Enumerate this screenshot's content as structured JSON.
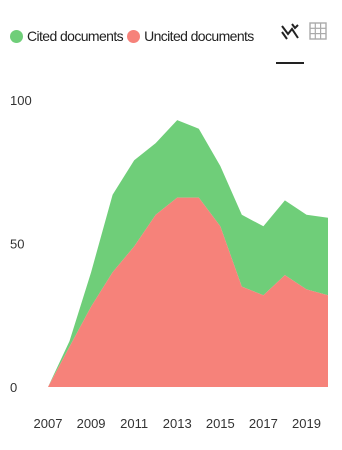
{
  "legend": {
    "items": [
      {
        "label": "Cited documents",
        "color": "#6fce79"
      },
      {
        "label": "Uncited documents",
        "color": "#f6827a"
      }
    ]
  },
  "toolbar": {
    "buttons": [
      {
        "icon": "area-chart-icon",
        "active": true
      },
      {
        "icon": "table-grid-icon",
        "active": false
      }
    ]
  },
  "chart_data": {
    "type": "area",
    "stacked": true,
    "x": [
      2007,
      2008,
      2009,
      2010,
      2011,
      2012,
      2013,
      2014,
      2015,
      2016,
      2017,
      2018,
      2019,
      2020
    ],
    "series": [
      {
        "name": "Uncited documents",
        "color": "#f6827a",
        "values": [
          0,
          14,
          28,
          40,
          49,
          60,
          66,
          66,
          56,
          35,
          32,
          39,
          34,
          32
        ]
      },
      {
        "name": "Cited documents",
        "color": "#6fce79",
        "values": [
          0,
          2,
          12,
          27,
          30,
          25,
          27,
          24,
          21,
          25,
          24,
          26,
          26,
          27
        ]
      }
    ],
    "xlim": [
      2007,
      2020
    ],
    "ylim": [
      0,
      100
    ],
    "x_tick_labels": [
      "2007",
      "2009",
      "2011",
      "2013",
      "2015",
      "2017",
      "2019"
    ],
    "y_tick_labels": [
      "0",
      "50",
      "100"
    ],
    "grid": false,
    "legend_position": "top-left"
  }
}
